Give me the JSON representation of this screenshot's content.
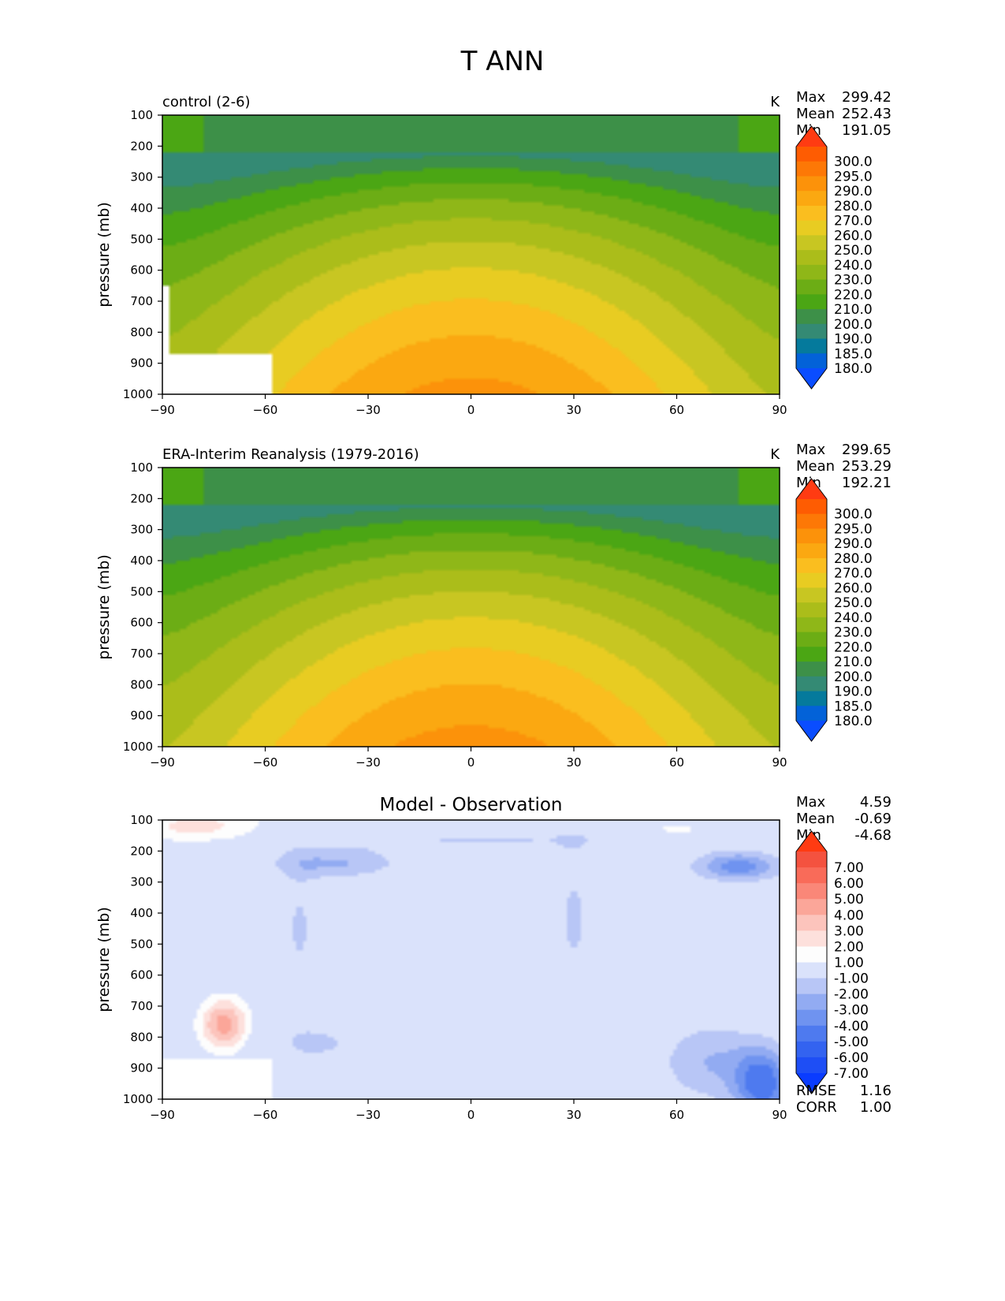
{
  "figure": {
    "title": "T ANN"
  },
  "chart_data": [
    {
      "type": "contour",
      "title": "control (2-6)",
      "units": "K",
      "ylabel": "pressure (mb)",
      "xlabel": "",
      "xlim": [
        -90,
        90
      ],
      "ylim": [
        1000,
        100
      ],
      "xticks": [
        -90,
        -60,
        -30,
        0,
        30,
        60,
        90
      ],
      "yticks": [
        100,
        200,
        300,
        400,
        500,
        600,
        700,
        800,
        900,
        1000
      ],
      "xtick_labels": [
        "−90",
        "−60",
        "−30",
        "0",
        "30",
        "60",
        "90"
      ],
      "stats": [
        {
          "label": "Max",
          "value": "299.42"
        },
        {
          "label": "Mean",
          "value": "252.43"
        },
        {
          "label": "Min",
          "value": "191.05"
        }
      ],
      "colorbar": {
        "extend": "both",
        "levels": [
          180,
          185,
          190,
          200,
          210,
          220,
          230,
          240,
          250,
          260,
          270,
          280,
          290,
          295,
          300
        ],
        "labels": [
          "300.0",
          "295.0",
          "290.0",
          "280.0",
          "270.0",
          "260.0",
          "250.0",
          "240.0",
          "230.0",
          "220.0",
          "210.0",
          "200.0",
          "190.0",
          "185.0",
          "180.0"
        ],
        "colors": [
          "#0a4dff",
          "#0362d8",
          "#057a9c",
          "#348a74",
          "#3d9048",
          "#4ba614",
          "#6cad15",
          "#8fb718",
          "#abbd1a",
          "#c8c622",
          "#e8cc22",
          "#fabe1f",
          "#fba811",
          "#fc920a",
          "#fd7806",
          "#fe5c02",
          "#ff3b12"
        ],
        "low_color": "#0a4dff",
        "high_color": "#ff3b12"
      },
      "missing_region": "near-surface data missing south of about 58S (terrain)",
      "field_model": {
        "t0": 293.5,
        "max": 299.42,
        "min": 191.05,
        "trop_top_shift": 30
      },
      "footer_stats": []
    },
    {
      "type": "contour",
      "title": "ERA-Interim Reanalysis (1979-2016)",
      "units": "K",
      "ylabel": "pressure (mb)",
      "xlabel": "",
      "xlim": [
        -90,
        90
      ],
      "ylim": [
        1000,
        100
      ],
      "xticks": [
        -90,
        -60,
        -30,
        0,
        30,
        60,
        90
      ],
      "yticks": [
        100,
        200,
        300,
        400,
        500,
        600,
        700,
        800,
        900,
        1000
      ],
      "xtick_labels": [
        "−90",
        "−60",
        "−30",
        "0",
        "30",
        "60",
        "90"
      ],
      "stats": [
        {
          "label": "Max",
          "value": "299.65"
        },
        {
          "label": "Mean",
          "value": "253.29"
        },
        {
          "label": "Min",
          "value": "192.21"
        }
      ],
      "colorbar": {
        "extend": "both",
        "levels": [
          180,
          185,
          190,
          200,
          210,
          220,
          230,
          240,
          250,
          260,
          270,
          280,
          290,
          295,
          300
        ],
        "labels": [
          "300.0",
          "295.0",
          "290.0",
          "280.0",
          "270.0",
          "260.0",
          "250.0",
          "240.0",
          "230.0",
          "220.0",
          "210.0",
          "200.0",
          "190.0",
          "185.0",
          "180.0"
        ],
        "colors": [
          "#0a4dff",
          "#0362d8",
          "#057a9c",
          "#348a74",
          "#3d9048",
          "#4ba614",
          "#6cad15",
          "#8fb718",
          "#abbd1a",
          "#c8c622",
          "#e8cc22",
          "#fabe1f",
          "#fba811",
          "#fc920a",
          "#fd7806",
          "#fe5c02",
          "#ff3b12"
        ],
        "low_color": "#0a4dff",
        "high_color": "#ff3b12"
      },
      "missing_region": "",
      "field_model": {
        "t0": 294.5,
        "max": 299.65,
        "min": 192.21,
        "trop_top_shift": 32
      },
      "footer_stats": []
    },
    {
      "type": "contour-difference",
      "title": "Model - Observation",
      "units": "",
      "ylabel": "pressure (mb)",
      "xlabel": "",
      "xlim": [
        -90,
        90
      ],
      "ylim": [
        1000,
        100
      ],
      "xticks": [
        -90,
        -60,
        -30,
        0,
        30,
        60,
        90
      ],
      "yticks": [
        100,
        200,
        300,
        400,
        500,
        600,
        700,
        800,
        900,
        1000
      ],
      "xtick_labels": [
        "−90",
        "−60",
        "−30",
        "0",
        "30",
        "60",
        "90"
      ],
      "stats": [
        {
          "label": "Max",
          "value": "4.59"
        },
        {
          "label": "Mean",
          "value": "-0.69"
        },
        {
          "label": "Min",
          "value": "-4.68"
        }
      ],
      "colorbar": {
        "extend": "both",
        "levels": [
          -7,
          -6,
          -5,
          -4,
          -3,
          -2,
          -1,
          1,
          2,
          3,
          4,
          5,
          6,
          7
        ],
        "labels": [
          "7.00",
          "6.00",
          "5.00",
          "4.00",
          "3.00",
          "2.00",
          "1.00",
          "-1.00",
          "-2.00",
          "-3.00",
          "-4.00",
          "-5.00",
          "-6.00",
          "-7.00"
        ],
        "colors": [
          "#0a3cff",
          "#1e4ef5",
          "#3363f0",
          "#4e7aef",
          "#6f93f0",
          "#92abf2",
          "#b8c6f6",
          "#dae2fb",
          "#fdfdfd",
          "#fde0dc",
          "#fcc4bc",
          "#fba699",
          "#fa8778",
          "#f96b59",
          "#f4523f",
          "#ff3b12"
        ],
        "low_color": "#0a3cff",
        "high_color": "#ff3b12"
      },
      "missing_region": "near-surface data missing south of about 58S (terrain)",
      "field_model": {},
      "footer_stats": [
        {
          "label": "RMSE",
          "value": "1.16"
        },
        {
          "label": "CORR",
          "value": "1.00"
        }
      ]
    }
  ]
}
